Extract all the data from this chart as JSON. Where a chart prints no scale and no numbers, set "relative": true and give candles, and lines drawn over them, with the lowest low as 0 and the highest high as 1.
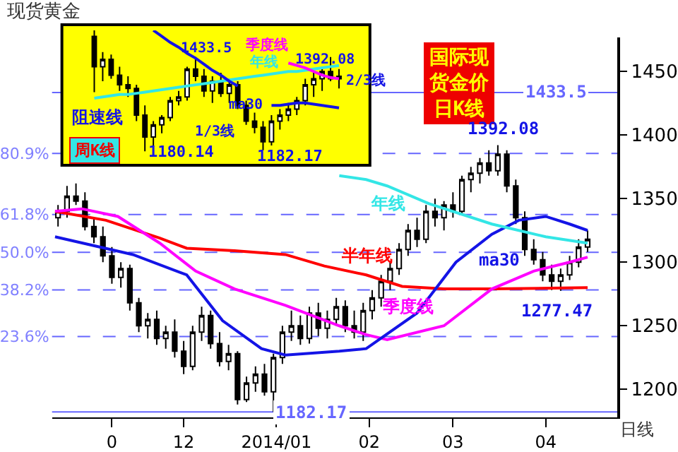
{
  "chart_data": [
    {
      "type": "candlestick",
      "title": "现货黄金",
      "xlabel": "日线",
      "x": [
        "2013-10-20",
        "2013-10-23",
        "2013-10-26",
        "2013-10-29",
        "2013-11-01",
        "2013-11-04",
        "2013-11-07",
        "2013-11-10",
        "2013-11-13",
        "2013-11-16",
        "2013-11-19",
        "2013-11-22",
        "2013-11-25",
        "2013-11-28",
        "2013-12-01",
        "2013-12-04",
        "2013-12-07",
        "2013-12-10",
        "2013-12-13",
        "2013-12-16",
        "2013-12-19",
        "2013-12-22",
        "2013-12-25",
        "2013-12-28",
        "2013-12-31",
        "2014-01-03",
        "2014-01-06",
        "2014-01-09",
        "2014-01-12",
        "2014-01-15",
        "2014-01-18",
        "2014-01-21",
        "2014-01-24",
        "2014-01-27",
        "2014-01-30",
        "2014-02-02",
        "2014-02-05",
        "2014-02-08",
        "2014-02-11",
        "2014-02-14",
        "2014-02-17",
        "2014-02-20",
        "2014-02-23",
        "2014-02-26",
        "2014-03-01",
        "2014-03-04",
        "2014-03-07",
        "2014-03-10",
        "2014-03-13",
        "2014-03-16",
        "2014-03-19",
        "2014-03-22",
        "2014-03-25",
        "2014-03-28",
        "2014-03-31",
        "2014-04-03",
        "2014-04-06",
        "2014-04-09",
        "2014-04-12",
        "2014-04-15"
      ],
      "ohlc": [
        [
          1335,
          1345,
          1328,
          1340
        ],
        [
          1340,
          1360,
          1335,
          1352
        ],
        [
          1352,
          1362,
          1345,
          1348
        ],
        [
          1348,
          1355,
          1325,
          1328
        ],
        [
          1328,
          1335,
          1315,
          1320
        ],
        [
          1320,
          1328,
          1300,
          1305
        ],
        [
          1305,
          1312,
          1283,
          1288
        ],
        [
          1288,
          1300,
          1280,
          1295
        ],
        [
          1295,
          1298,
          1262,
          1268
        ],
        [
          1268,
          1272,
          1245,
          1250
        ],
        [
          1250,
          1260,
          1240,
          1255
        ],
        [
          1255,
          1262,
          1235,
          1240
        ],
        [
          1240,
          1250,
          1232,
          1245
        ],
        [
          1245,
          1255,
          1225,
          1230
        ],
        [
          1230,
          1238,
          1212,
          1218
        ],
        [
          1218,
          1250,
          1215,
          1245
        ],
        [
          1245,
          1265,
          1238,
          1258
        ],
        [
          1258,
          1262,
          1232,
          1236
        ],
        [
          1236,
          1245,
          1218,
          1222
        ],
        [
          1222,
          1235,
          1215,
          1228
        ],
        [
          1228,
          1230,
          1188,
          1192
        ],
        [
          1192,
          1210,
          1190,
          1205
        ],
        [
          1205,
          1218,
          1198,
          1212
        ],
        [
          1212,
          1220,
          1195,
          1198
        ],
        [
          1198,
          1228,
          1182.17,
          1225
        ],
        [
          1225,
          1250,
          1220,
          1245
        ],
        [
          1245,
          1262,
          1238,
          1250
        ],
        [
          1250,
          1258,
          1235,
          1240
        ],
        [
          1240,
          1265,
          1236,
          1260
        ],
        [
          1260,
          1268,
          1242,
          1248
        ],
        [
          1248,
          1262,
          1240,
          1255
        ],
        [
          1255,
          1272,
          1250,
          1265
        ],
        [
          1265,
          1270,
          1245,
          1250
        ],
        [
          1250,
          1262,
          1240,
          1245
        ],
        [
          1245,
          1268,
          1238,
          1262
        ],
        [
          1262,
          1278,
          1255,
          1272
        ],
        [
          1272,
          1290,
          1265,
          1285
        ],
        [
          1285,
          1300,
          1278,
          1295
        ],
        [
          1295,
          1315,
          1290,
          1310
        ],
        [
          1310,
          1330,
          1305,
          1325
        ],
        [
          1325,
          1335,
          1312,
          1318
        ],
        [
          1318,
          1345,
          1315,
          1340
        ],
        [
          1340,
          1350,
          1328,
          1335
        ],
        [
          1335,
          1348,
          1325,
          1345
        ],
        [
          1345,
          1355,
          1335,
          1340
        ],
        [
          1340,
          1368,
          1338,
          1365
        ],
        [
          1365,
          1375,
          1355,
          1370
        ],
        [
          1370,
          1382,
          1362,
          1378
        ],
        [
          1378,
          1388,
          1368,
          1372
        ],
        [
          1372,
          1392.08,
          1368,
          1385
        ],
        [
          1385,
          1388,
          1355,
          1360
        ],
        [
          1360,
          1365,
          1330,
          1335
        ],
        [
          1335,
          1340,
          1305,
          1310
        ],
        [
          1310,
          1318,
          1298,
          1302
        ],
        [
          1302,
          1308,
          1285,
          1290
        ],
        [
          1290,
          1298,
          1278,
          1285
        ],
        [
          1285,
          1295,
          1277.47,
          1290
        ],
        [
          1290,
          1305,
          1286,
          1300
        ],
        [
          1300,
          1318,
          1296,
          1312
        ],
        [
          1312,
          1325,
          1308,
          1318
        ]
      ],
      "series": [
        {
          "type": "line",
          "name": "半年线",
          "color": "#ff0000",
          "x": [
            "2013-10-19",
            "2013-11-05",
            "2013-11-23",
            "2013-12-02",
            "2013-12-18",
            "2014-01-04",
            "2014-01-17",
            "2014-01-31",
            "2014-02-12",
            "2014-02-26",
            "2014-03-14",
            "2014-04-15"
          ],
          "values": [
            1340,
            1333,
            1319,
            1311,
            1309,
            1306,
            1297,
            1290,
            1281,
            1279,
            1279,
            1280
          ]
        },
        {
          "type": "line",
          "name": "季度线",
          "color": "#ff00ff",
          "x": [
            "2013-10-19",
            "2013-10-28",
            "2013-11-09",
            "2013-11-23",
            "2013-12-05",
            "2013-12-18",
            "2014-01-04",
            "2014-01-22",
            "2014-01-31",
            "2014-02-07",
            "2014-02-26",
            "2014-03-14",
            "2014-03-28",
            "2014-04-09",
            "2014-04-15"
          ],
          "values": [
            1340,
            1342,
            1336,
            1315,
            1293,
            1279,
            1266,
            1250,
            1243,
            1239,
            1250,
            1279,
            1293,
            1300,
            1304
          ]
        },
        {
          "type": "line",
          "name": "ma30",
          "color": "#1414e6",
          "x": [
            "2013-10-19",
            "2013-11-14",
            "2013-12-02",
            "2013-12-14",
            "2013-12-27",
            "2014-01-04",
            "2014-01-22",
            "2014-01-31",
            "2014-02-17",
            "2014-03-02",
            "2014-03-14",
            "2014-03-23",
            "2014-04-01",
            "2014-04-09",
            "2014-04-15"
          ],
          "values": [
            1320,
            1306,
            1290,
            1254,
            1232,
            1227,
            1230,
            1232,
            1260,
            1300,
            1322,
            1333,
            1336,
            1330,
            1325
          ]
        },
        {
          "type": "line",
          "name": "年线",
          "color": "#33e6e6",
          "x": [
            "2014-01-22",
            "2014-01-31",
            "2014-02-07",
            "2014-02-21",
            "2014-03-14",
            "2014-04-01",
            "2014-04-15"
          ],
          "values": [
            1368,
            1365,
            1360,
            1346,
            1330,
            1320,
            1315
          ]
        }
      ],
      "xlim": [
        "2013-10-18",
        "2014-04-25"
      ],
      "ylim": [
        1178,
        1477
      ],
      "y2lim": [
        -1.66,
        117.31
      ],
      "xticks": [
        {
          "value": "2013-11-07",
          "label": "0"
        },
        {
          "value": "2013-12-01",
          "label": "12"
        },
        {
          "value": "2014-01-01",
          "label": "2014/01"
        },
        {
          "value": "2014-02-01",
          "label": "02"
        },
        {
          "value": "2014-03-01",
          "label": "03"
        },
        {
          "value": "2014-04-01",
          "label": "04"
        }
      ],
      "yticks": [
        1200,
        1250,
        1300,
        1350,
        1400,
        1450
      ],
      "y2ticks": [
        {
          "value": 80.9,
          "label": "80.9%"
        },
        {
          "value": 61.8,
          "label": "61.8%"
        },
        {
          "value": 50,
          "label": "50.0%"
        },
        {
          "value": 38.2,
          "label": "38.2%"
        },
        {
          "value": 23.6,
          "label": "23.6%"
        }
      ],
      "ref_lines": [
        {
          "axis": "y",
          "value": 1433.5,
          "label": "1433.5",
          "color": "#6666ff",
          "line_style": "solid"
        },
        {
          "axis": "y",
          "value": 1182.17,
          "label": "1182.17",
          "color": "#6666ff",
          "line_style": "solid"
        },
        {
          "axis": "y2",
          "value": 80.9,
          "color": "#6666ff",
          "line_style": "dashed"
        },
        {
          "axis": "y2",
          "value": 61.8,
          "color": "#6666ff",
          "line_style": "dashed"
        },
        {
          "axis": "y2",
          "value": 50,
          "color": "#6666ff",
          "line_style": "dashed"
        },
        {
          "axis": "y2",
          "value": 38.2,
          "color": "#6666ff",
          "line_style": "dashed"
        },
        {
          "axis": "y2",
          "value": 23.6,
          "color": "#6666ff",
          "line_style": "dashed"
        }
      ],
      "annotations": [
        "国际现货金价日K线",
        {
          "text": "1392.08",
          "x": "2014-03-16",
          "y": 1392.08
        },
        {
          "text": "1277.47",
          "x": "2014-04-03",
          "y": 1277.47
        }
      ],
      "grid": false,
      "legend": false
    },
    {
      "type": "candlestick",
      "relative": true,
      "categories": [
        null,
        null,
        null,
        null,
        null,
        null,
        null,
        null,
        null,
        null,
        null,
        null,
        null,
        null,
        null,
        null,
        null,
        null,
        null,
        null,
        null,
        null,
        null,
        null,
        null,
        null,
        null,
        null,
        null,
        null
      ],
      "ohlc": [
        [
          0.95,
          1,
          0.49,
          0.7
        ],
        [
          0.7,
          0.82,
          0.58,
          0.76
        ],
        [
          0.76,
          0.8,
          0.6,
          0.63
        ],
        [
          0.63,
          0.7,
          0.5,
          0.55
        ],
        [
          0.55,
          0.62,
          0.45,
          0.52
        ],
        [
          0.52,
          0.55,
          0.25,
          0.3
        ],
        [
          0.3,
          0.38,
          0,
          0.12
        ],
        [
          0.12,
          0.25,
          0.04,
          0.22
        ],
        [
          0.22,
          0.3,
          0.15,
          0.28
        ],
        [
          0.28,
          0.45,
          0.25,
          0.42
        ],
        [
          0.42,
          0.5,
          0.38,
          0.45
        ],
        [
          0.45,
          0.7,
          0.42,
          0.68
        ],
        [
          0.68,
          0.78,
          0.58,
          0.62
        ],
        [
          0.62,
          0.68,
          0.45,
          0.5
        ],
        [
          0.5,
          0.62,
          0.4,
          0.58
        ],
        [
          0.58,
          0.65,
          0.45,
          0.48
        ],
        [
          0.48,
          0.6,
          0.4,
          0.55
        ],
        [
          0.55,
          0.58,
          0.35,
          0.38
        ],
        [
          0.38,
          0.42,
          0.22,
          0.25
        ],
        [
          0.25,
          0.32,
          0.15,
          0.2
        ],
        [
          0.2,
          0.25,
          0.01,
          0.08
        ],
        [
          0.08,
          0.3,
          0.05,
          0.25
        ],
        [
          0.25,
          0.35,
          0.18,
          0.3
        ],
        [
          0.3,
          0.4,
          0.25,
          0.35
        ],
        [
          0.35,
          0.45,
          0.3,
          0.42
        ],
        [
          0.42,
          0.6,
          0.38,
          0.55
        ],
        [
          0.55,
          0.65,
          0.45,
          0.6
        ],
        [
          0.6,
          0.7,
          0.5,
          0.66
        ],
        [
          0.66,
          0.78,
          0.58,
          0.6
        ],
        [
          0.6,
          0.68,
          0.52,
          0.62
        ]
      ],
      "series": [
        {
          "type": "line",
          "name": "年线",
          "color": "#33e6e6",
          "values": [
            0.44,
            0.45,
            0.46,
            0.47,
            0.47,
            0.48,
            0.49,
            0.5,
            0.51,
            0.52,
            0.53,
            0.54,
            0.55,
            0.56,
            0.57,
            0.58,
            0.59,
            0.6,
            0.61,
            0.62,
            0.63,
            0.64,
            0.65,
            0.66,
            0.66,
            0.67,
            0.68,
            0.69,
            0.7,
            0.71
          ]
        },
        {
          "type": "line",
          "name": "季度线",
          "color": "#ff00ff",
          "values": [
            null,
            null,
            null,
            null,
            null,
            null,
            null,
            null,
            null,
            null,
            null,
            null,
            null,
            null,
            null,
            null,
            null,
            null,
            null,
            null,
            null,
            null,
            null,
            0.73,
            0.71,
            0.69,
            0.66,
            0.63,
            0.61,
            0.6
          ]
        },
        {
          "type": "line",
          "name": "ma30",
          "color": "#1414e6",
          "values": [
            null,
            null,
            null,
            null,
            null,
            null,
            null,
            null,
            null,
            null,
            null,
            null,
            null,
            null,
            null,
            null,
            null,
            null,
            null,
            null,
            null,
            0.38,
            0.38,
            0.39,
            0.4,
            0.4,
            0.39,
            0.38,
            0.37,
            0.36
          ]
        },
        {
          "type": "line",
          "color": "#1414e6",
          "values": [
            null,
            null,
            null,
            null,
            null,
            null,
            null,
            1,
            0.95,
            0.9,
            0.86,
            0.81,
            0.77,
            0.72,
            0.67,
            0.63,
            0.58,
            0.54,
            null,
            null,
            null,
            null,
            null,
            null,
            null,
            null,
            null,
            null,
            null,
            null
          ]
        }
      ],
      "annotations": [
        "1433.5",
        "1392.08",
        "2/3线",
        "阻速线",
        "1/3线",
        "1180.14",
        "1182.17",
        "周K线"
      ],
      "legend": false
    }
  ]
}
